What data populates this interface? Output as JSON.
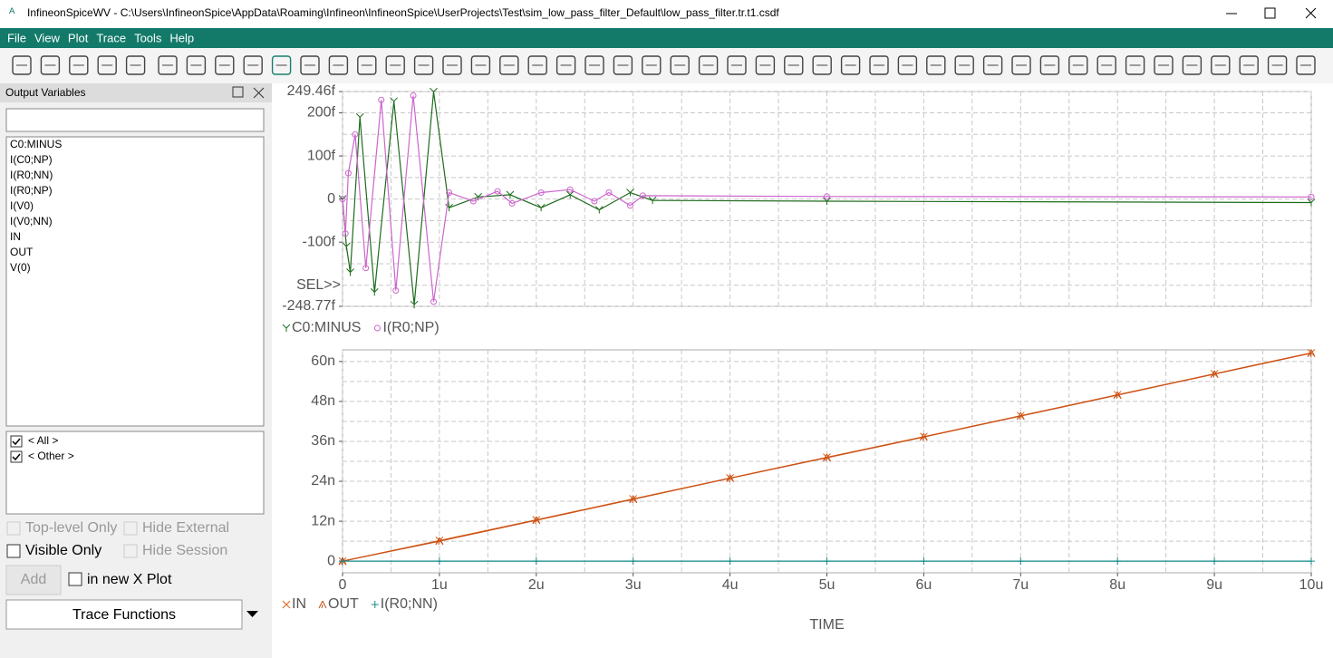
{
  "window": {
    "title": "InfineonSpiceWV - C:\\Users\\InfineonSpice\\AppData\\Roaming\\Infineon\\InfineonSpice\\UserProjects\\Test\\sim_low_pass_filter_Default\\low_pass_filter.tr.t1.csdf"
  },
  "menu": [
    "File",
    "View",
    "Plot",
    "Trace",
    "Tools",
    "Help"
  ],
  "sidebar": {
    "title": "Output Variables",
    "variables": [
      "C0:MINUS",
      "I(C0;NP)",
      "I(R0;NN)",
      "I(R0;NP)",
      "I(V0)",
      "I(V0;NN)",
      "IN",
      "OUT",
      "V(0)"
    ],
    "filters": [
      "< All >",
      "< Other >"
    ],
    "options": [
      "Top-level Only",
      "Hide External",
      "Visible Only",
      "Hide Session"
    ],
    "add_button": "Add",
    "new_plot": "in new X Plot",
    "trace_functions": "Trace Functions"
  },
  "chart_data": [
    {
      "type": "line",
      "annotation": "SEL>>",
      "xlim": [
        0,
        10
      ],
      "xticks": [
        0,
        1,
        2,
        3,
        4,
        5,
        6,
        7,
        8,
        9,
        10
      ],
      "minor_xticks": [
        0.5,
        1.5,
        2.5,
        3.5,
        4.5,
        5.5,
        6.5,
        7.5,
        8.5,
        9.5
      ],
      "ylim": [
        -248.77,
        249.46
      ],
      "yticks": [
        {
          "value": 249.46,
          "label": "249.46f"
        },
        {
          "value": 200,
          "label": "200f"
        },
        {
          "value": 100,
          "label": "100f"
        },
        0,
        {
          "value": -100,
          "label": "-100f"
        },
        {
          "value": -248.77,
          "label": "-248.77f"
        }
      ],
      "minor_yticks": [
        150,
        50,
        -50,
        -150,
        -200
      ],
      "grid": true,
      "series": [
        {
          "name": "C0:MINUS",
          "color": "#1e6b1e",
          "marker": "y",
          "x": [
            0,
            0.04,
            0.08,
            0.18,
            0.33,
            0.53,
            0.74,
            0.94,
            1.1,
            1.4,
            1.73,
            2.05,
            2.35,
            2.65,
            2.97,
            3.2,
            5,
            10
          ],
          "values": [
            0,
            -110,
            -170,
            190,
            -216,
            227,
            -245,
            249,
            -20,
            5,
            10,
            -20,
            10,
            -25,
            15,
            -3,
            -5,
            -8
          ]
        },
        {
          "name": "I(R0;NP)",
          "color": "#cc66cc",
          "marker": "circle",
          "x": [
            0,
            0.03,
            0.06,
            0.13,
            0.24,
            0.4,
            0.55,
            0.73,
            0.94,
            1.1,
            1.35,
            1.6,
            1.75,
            2.05,
            2.35,
            2.6,
            2.75,
            2.97,
            3.1,
            5,
            10
          ],
          "values": [
            0,
            -80,
            60,
            150,
            -160,
            230,
            -212,
            240,
            -238,
            15,
            -5,
            18,
            -10,
            15,
            22,
            -5,
            15,
            -15,
            8,
            6,
            5
          ]
        }
      ]
    },
    {
      "type": "line",
      "xlabel": "TIME",
      "x": [
        0,
        1,
        2,
        3,
        4,
        5,
        6,
        7,
        8,
        9,
        10
      ],
      "xlim": [
        0,
        10
      ],
      "xticks": [
        0,
        {
          "value": 1,
          "label": "1u"
        },
        {
          "value": 2,
          "label": "2u"
        },
        {
          "value": 3,
          "label": "3u"
        },
        {
          "value": 4,
          "label": "4u"
        },
        {
          "value": 5,
          "label": "5u"
        },
        {
          "value": 6,
          "label": "6u"
        },
        {
          "value": 7,
          "label": "7u"
        },
        {
          "value": 8,
          "label": "8u"
        },
        {
          "value": 9,
          "label": "9u"
        },
        {
          "value": 10,
          "label": "10u"
        }
      ],
      "minor_xticks": [
        0.5,
        1.5,
        2.5,
        3.5,
        4.5,
        5.5,
        6.5,
        7.5,
        8.5,
        9.5
      ],
      "ylim": [
        -3.5,
        63.5
      ],
      "yticks": [
        0,
        {
          "value": 12,
          "label": "12n"
        },
        {
          "value": 24,
          "label": "24n"
        },
        {
          "value": 36,
          "label": "36n"
        },
        {
          "value": 48,
          "label": "48n"
        },
        {
          "value": 60,
          "label": "60n"
        }
      ],
      "minor_yticks": [
        6,
        18,
        30,
        42,
        54
      ],
      "grid": true,
      "series": [
        {
          "name": "IN",
          "color": "#e06010",
          "marker": "x",
          "values": [
            0,
            6.2,
            12.4,
            18.7,
            25,
            31.2,
            37.4,
            43.7,
            50,
            56.3,
            62.6
          ]
        },
        {
          "name": "OUT",
          "color": "#c8501a",
          "marker": "lambda",
          "values": [
            0,
            6,
            12.3,
            18.6,
            24.9,
            31.1,
            37.3,
            43.6,
            49.9,
            56.2,
            62.5
          ]
        },
        {
          "name": "I(R0;NN)",
          "color": "#138a8a",
          "marker": "plus",
          "values": [
            0,
            0,
            0,
            0,
            0,
            0,
            0,
            0,
            0,
            0,
            0
          ]
        }
      ]
    }
  ]
}
